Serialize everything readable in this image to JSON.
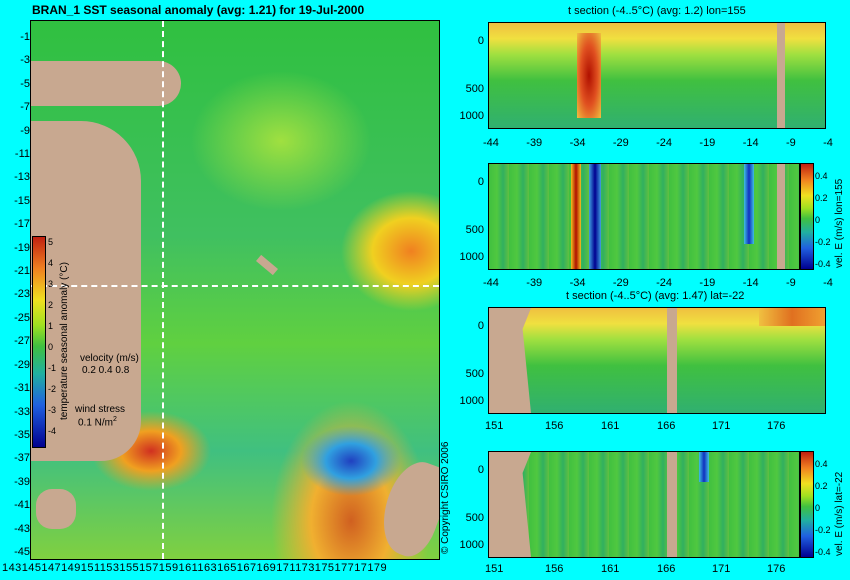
{
  "map": {
    "title": "BRAN_1 SST seasonal anomaly (avg: 1.21) for 19-Jul-2000",
    "lat_ticks": [
      "-1",
      "-3",
      "-5",
      "-7",
      "-9",
      "-11",
      "-13",
      "-15",
      "-17",
      "-19",
      "-21",
      "-23",
      "-25",
      "-27",
      "-29",
      "-31",
      "-33",
      "-35",
      "-37",
      "-39",
      "-41",
      "-43",
      "-45"
    ],
    "lon_ticks_text": "14314514714915115315515715916116316516716917117317517717",
    "lon_tick_last": "179",
    "colorbar_ticks": [
      "5",
      "4",
      "3",
      "2",
      "1",
      "0",
      "-1",
      "-2",
      "-3",
      "-4"
    ],
    "colorbar_label": "temperature seasonal anomaly (°C)",
    "velocity_label": "velocity (m/s)",
    "velocity_values": "0.2 0.4 0.8",
    "wind_label": "wind stress",
    "wind_value": "0.1 N/m",
    "wind_exp": "2",
    "copyright": "© Copyright CSIRO 2006"
  },
  "sections": [
    {
      "title": "t section (-4..5°C) (avg: 1.2) lon=155",
      "x_ticks": [
        "-44",
        "-39",
        "-34",
        "-29",
        "-24",
        "-19",
        "-14",
        "-9",
        "-4"
      ],
      "y_ticks": [
        "0",
        "500",
        "1000"
      ]
    },
    {
      "title": "",
      "x_ticks": [
        "-44",
        "-39",
        "-34",
        "-29",
        "-24",
        "-19",
        "-14",
        "-9",
        "-4"
      ],
      "y_ticks": [
        "0",
        "500",
        "1000"
      ],
      "side_label": "vel. E (m/s) lon=155",
      "cbar_ticks": [
        "0.4",
        "0.2",
        "0",
        "-0.2",
        "-0.4"
      ]
    },
    {
      "title": "t section (-4..5°C) (avg: 1.47) lat=-22",
      "x_ticks": [
        "151",
        "156",
        "161",
        "166",
        "171",
        "176"
      ],
      "y_ticks": [
        "0",
        "500",
        "1000"
      ]
    },
    {
      "title": "",
      "x_ticks": [
        "151",
        "156",
        "161",
        "166",
        "171",
        "176"
      ],
      "y_ticks": [
        "0",
        "500",
        "1000"
      ],
      "side_label": "vel. E (m/s) lat=-22",
      "cbar_ticks": [
        "0.4",
        "0.2",
        "0",
        "-0.2",
        "-0.4"
      ]
    }
  ],
  "colors": {
    "background": "#00ffff",
    "land": "#c8a890"
  }
}
